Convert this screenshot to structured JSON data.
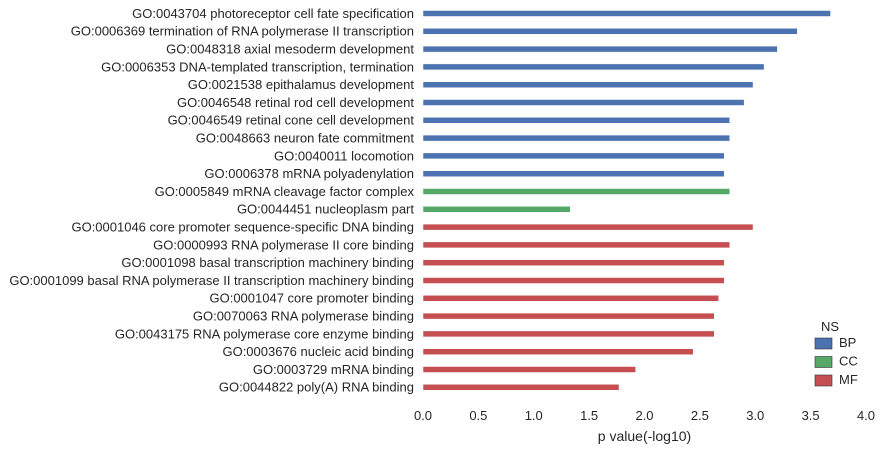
{
  "chart_data": {
    "type": "bar",
    "orientation": "horizontal",
    "categories": [
      "GO:0043704 photoreceptor cell fate specification",
      "GO:0006369 termination of RNA polymerase II transcription",
      "GO:0048318 axial mesoderm development",
      "GO:0006353 DNA-templated transcription, termination",
      "GO:0021538 epithalamus development",
      "GO:0046548 retinal rod cell development",
      "GO:0046549 retinal cone cell development",
      "GO:0048663 neuron fate commitment",
      "GO:0040011 locomotion",
      "GO:0006378 mRNA polyadenylation",
      "GO:0005849 mRNA cleavage factor complex",
      "GO:0044451 nucleoplasm part",
      "GO:0001046 core promoter sequence-specific DNA binding",
      "GO:0000993 RNA polymerase II core binding",
      "GO:0001098 basal transcription machinery binding",
      "GO:0001099 basal RNA polymerase II transcription machinery binding",
      "GO:0001047 core promoter binding",
      "GO:0070063 RNA polymerase binding",
      "GO:0043175 RNA polymerase core enzyme binding",
      "GO:0003676 nucleic acid binding",
      "GO:0003729 mRNA binding",
      "GO:0044822 poly(A) RNA binding"
    ],
    "values": [
      3.68,
      3.38,
      3.2,
      3.08,
      2.98,
      2.9,
      2.77,
      2.77,
      2.72,
      2.72,
      2.77,
      1.33,
      2.98,
      2.77,
      2.72,
      2.72,
      2.67,
      2.63,
      2.63,
      2.44,
      1.92,
      1.77
    ],
    "groups": [
      "BP",
      "BP",
      "BP",
      "BP",
      "BP",
      "BP",
      "BP",
      "BP",
      "BP",
      "BP",
      "CC",
      "CC",
      "MF",
      "MF",
      "MF",
      "MF",
      "MF",
      "MF",
      "MF",
      "MF",
      "MF",
      "MF"
    ],
    "colors": {
      "BP": "#4c72b0",
      "CC": "#55a868",
      "MF": "#c44e52"
    },
    "xlabel": "p value(-log10)",
    "ylabel": "",
    "xlim": [
      0,
      4
    ],
    "xticks": [
      "0.0",
      "0.5",
      "1.0",
      "1.5",
      "2.0",
      "2.5",
      "3.0",
      "3.5",
      "4.0"
    ],
    "grid": false,
    "legend": {
      "title": "NS",
      "entries": [
        "BP",
        "CC",
        "MF"
      ],
      "position": "bottom-right"
    }
  }
}
